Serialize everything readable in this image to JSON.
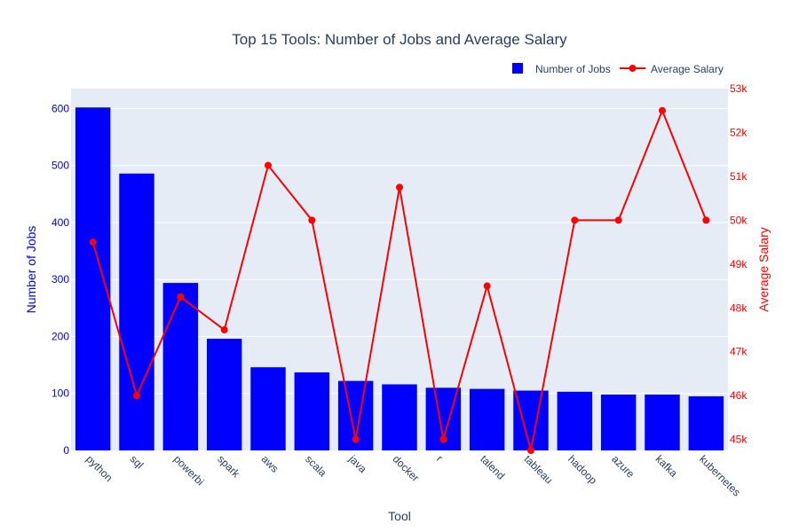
{
  "chart_data": {
    "type": "bar",
    "title": "Top 15 Tools: Number of Jobs and Average Salary",
    "xlabel": "Tool",
    "ylabel": "Number of Jobs",
    "y2label": "Average Salary",
    "categories": [
      "python",
      "sql",
      "powerbi",
      "spark",
      "aws",
      "scala",
      "java",
      "docker",
      "r",
      "talend",
      "tableau",
      "hadoop",
      "azure",
      "kafka",
      "kubernetes"
    ],
    "ylim": [
      0,
      635
    ],
    "y2lim": [
      44750,
      53000
    ],
    "yticks": [
      0,
      100,
      200,
      300,
      400,
      500,
      600
    ],
    "y2ticks": [
      {
        "value": 45000,
        "label": "45k"
      },
      {
        "value": 46000,
        "label": "46k"
      },
      {
        "value": 47000,
        "label": "47k"
      },
      {
        "value": 48000,
        "label": "48k"
      },
      {
        "value": 49000,
        "label": "49k"
      },
      {
        "value": 50000,
        "label": "50k"
      },
      {
        "value": 51000,
        "label": "51k"
      },
      {
        "value": 52000,
        "label": "52k"
      },
      {
        "value": 53000,
        "label": "53k"
      }
    ],
    "grid": true,
    "legend_position": "top-right",
    "series": [
      {
        "name": "Number of Jobs",
        "type": "bar",
        "axis": "left",
        "color": "#0000ff",
        "values": [
          602,
          486,
          294,
          196,
          146,
          137,
          122,
          116,
          110,
          108,
          105,
          103,
          98,
          98,
          95
        ]
      },
      {
        "name": "Average Salary",
        "type": "line",
        "axis": "right",
        "color": "#ff0000",
        "values": [
          49500,
          46000,
          48250,
          47500,
          51250,
          50000,
          45000,
          50750,
          45000,
          48500,
          44750,
          50000,
          50000,
          52500,
          50000
        ]
      }
    ],
    "colors": {
      "plot_background": "#e5ecf6",
      "grid": "#ffffff",
      "left_axis": "#0000ff",
      "right_axis": "#ff0000",
      "text": "#2a3f5f"
    }
  }
}
